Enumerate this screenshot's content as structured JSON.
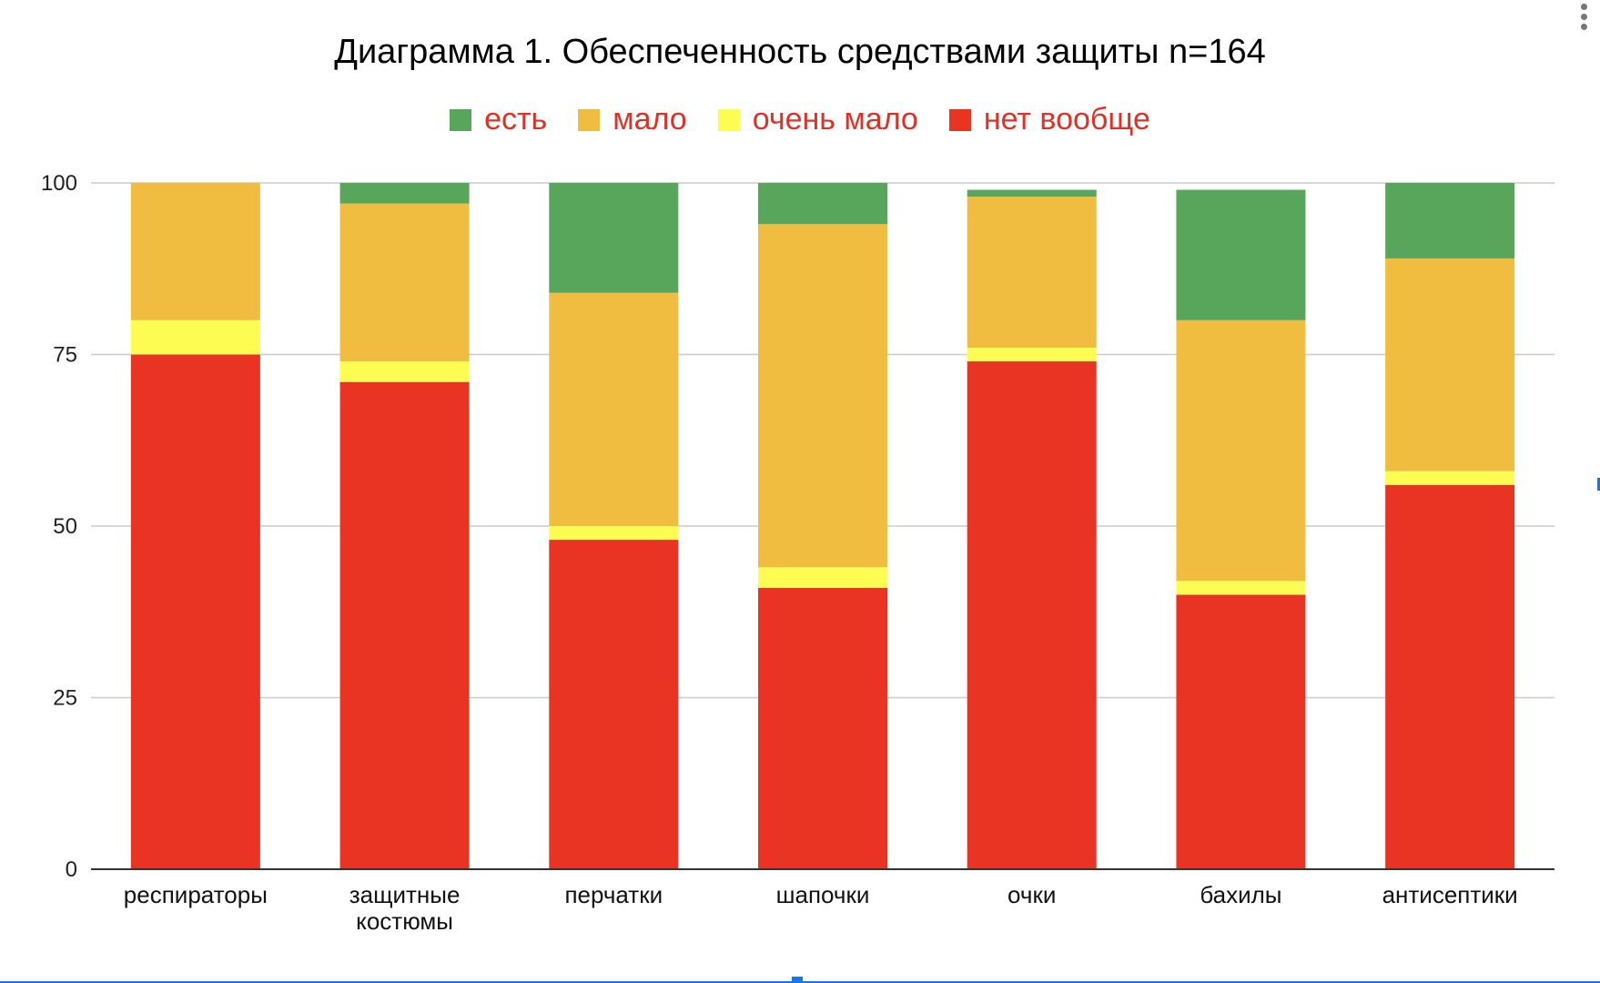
{
  "chart_data": {
    "type": "bar",
    "stacked": true,
    "title": "Диаграмма 1. Обеспеченность средствами защиты n=164",
    "xlabel": "",
    "ylabel": "",
    "ylim": [
      0,
      100
    ],
    "yticks": [
      "0",
      "25",
      "50",
      "75",
      "100"
    ],
    "grid": true,
    "legend_position": "top",
    "categories": [
      [
        "респираторы"
      ],
      [
        "защитные",
        "костюмы"
      ],
      [
        "перчатки"
      ],
      [
        "шапочки"
      ],
      [
        "очки"
      ],
      [
        "бахилы"
      ],
      [
        "антисептики"
      ]
    ],
    "series": [
      {
        "name": "нет вообще",
        "color": "#e93323",
        "values": [
          75,
          71,
          48,
          41,
          74,
          40,
          56
        ]
      },
      {
        "name": "очень мало",
        "color": "#fdfc53",
        "values": [
          5,
          3,
          2,
          3,
          2,
          2,
          2
        ]
      },
      {
        "name": "мало",
        "color": "#f0bd40",
        "values": [
          20,
          23,
          34,
          50,
          22,
          38,
          31
        ]
      },
      {
        "name": "есть",
        "color": "#58a65c",
        "values": [
          0,
          3,
          16,
          6,
          1,
          19,
          11
        ]
      }
    ],
    "legend_order": [
      "есть",
      "мало",
      "очень мало",
      "нет вообще"
    ]
  }
}
